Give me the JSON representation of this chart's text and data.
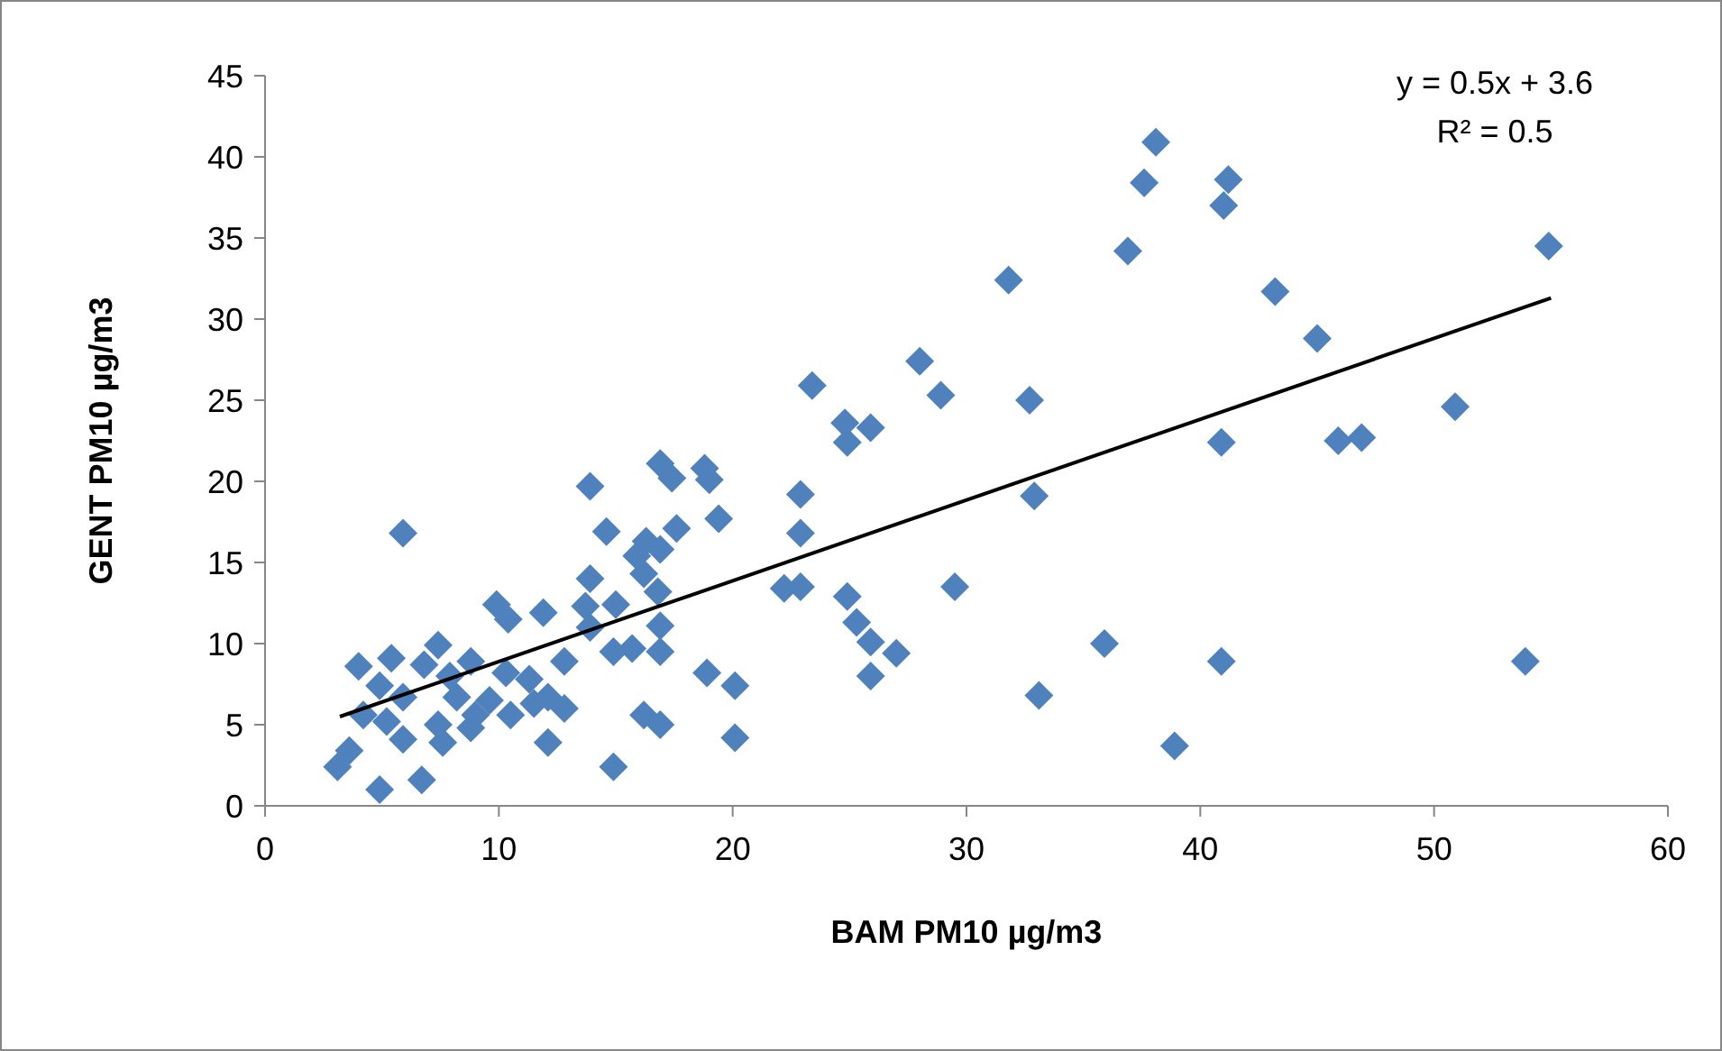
{
  "chart_data": {
    "type": "scatter",
    "xlabel": "BAM PM10 µg/m3",
    "ylabel": "GENT PM10 µg/m3",
    "xlim": [
      0,
      60
    ],
    "ylim": [
      0,
      45
    ],
    "xticks": [
      0,
      10,
      20,
      30,
      40,
      50,
      60
    ],
    "yticks": [
      0,
      5,
      10,
      15,
      20,
      25,
      30,
      35,
      40,
      45
    ],
    "grid": false,
    "annotations": [
      "y = 0.5x + 3.6",
      "R² = 0.5"
    ],
    "series": [
      {
        "marker": "diamond",
        "color": "#4f81bd",
        "x": [
          38.1,
          37.6,
          41.2,
          41.0,
          36.9,
          54.9,
          43.2,
          45.0,
          40.9,
          45.9,
          46.9,
          50.9,
          35.9,
          40.9,
          53.9,
          38.9,
          31.8,
          28.0,
          23.4,
          28.9,
          32.7,
          24.8,
          25.9,
          24.9,
          22.9,
          32.9,
          22.9,
          22.2,
          22.9,
          29.5,
          24.9,
          25.3,
          25.9,
          27.0,
          25.9,
          33.1,
          20.1,
          20.1,
          16.9,
          18.8,
          17.4,
          19.0,
          13.9,
          19.4,
          5.9,
          14.6,
          17.6,
          16.3,
          15.9,
          16.9,
          16.2,
          13.9,
          16.8,
          11.9,
          9.9,
          13.7,
          15.0,
          10.4,
          16.9,
          13.9,
          7.4,
          5.4,
          4.0,
          14.9,
          15.7,
          16.9,
          8.8,
          10.3,
          12.8,
          6.8,
          11.3,
          7.9,
          18.9,
          4.9,
          5.9,
          9.6,
          12.1,
          12.8,
          8.2,
          9.0,
          10.5,
          11.5,
          4.2,
          5.2,
          7.4,
          16.2,
          16.9,
          8.8,
          5.9,
          7.6,
          12.1,
          3.6,
          3.1,
          14.9,
          6.7,
          4.9
        ],
        "values": [
          40.9,
          38.4,
          38.6,
          37.0,
          34.2,
          34.5,
          31.7,
          28.8,
          22.4,
          22.5,
          22.7,
          24.6,
          10.0,
          8.9,
          8.9,
          3.7,
          32.4,
          27.4,
          25.9,
          25.3,
          25.0,
          23.6,
          23.3,
          22.4,
          19.2,
          19.1,
          16.8,
          13.4,
          13.5,
          13.5,
          12.9,
          11.3,
          10.1,
          9.4,
          8.0,
          6.8,
          7.4,
          4.2,
          21.1,
          20.8,
          20.2,
          20.1,
          19.7,
          17.7,
          16.8,
          16.9,
          17.1,
          16.3,
          15.4,
          15.8,
          14.3,
          14.0,
          13.2,
          11.9,
          12.4,
          12.3,
          12.4,
          11.5,
          11.1,
          11.0,
          9.9,
          9.1,
          8.6,
          9.5,
          9.7,
          9.5,
          8.9,
          8.2,
          8.9,
          8.7,
          7.8,
          8.0,
          8.2,
          7.4,
          6.7,
          6.5,
          6.7,
          6.0,
          6.7,
          5.6,
          5.6,
          6.3,
          5.6,
          5.2,
          5.0,
          5.6,
          5.0,
          4.8,
          4.1,
          3.9,
          3.9,
          3.4,
          2.4,
          2.4,
          1.6,
          1.0
        ]
      },
      {
        "type": "line",
        "marker": "none",
        "color": "#000000",
        "x": [
          3.2,
          55.0
        ],
        "values": [
          5.5,
          31.3
        ]
      }
    ]
  }
}
